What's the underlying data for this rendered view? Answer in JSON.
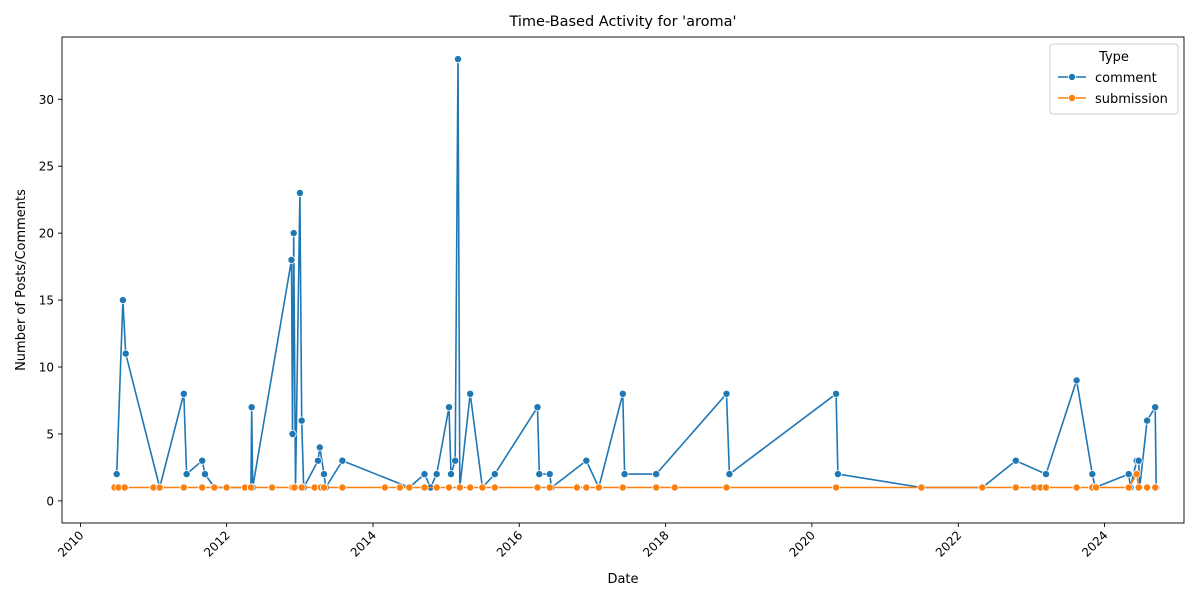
{
  "chart_data": {
    "type": "line",
    "title": "Time-Based Activity for 'aroma'",
    "xlabel": "Date",
    "ylabel": "Number of Posts/Comments",
    "xlim": [
      "2009-10-01",
      "2025-02-01"
    ],
    "ylim": [
      -1.65,
      34.65
    ],
    "x_ticks": [
      "2010-01-01",
      "2012-01-01",
      "2014-01-01",
      "2016-01-01",
      "2018-01-01",
      "2020-01-01",
      "2022-01-01",
      "2024-01-01"
    ],
    "x_tick_labels": [
      "2010",
      "2012",
      "2014",
      "2016",
      "2018",
      "2020",
      "2022",
      "2024"
    ],
    "y_ticks": [
      0,
      5,
      10,
      15,
      20,
      25,
      30
    ],
    "grid": false,
    "legend": {
      "title": "Type",
      "position": "top-right"
    },
    "series": [
      {
        "name": "comment",
        "color": "#1f77b4",
        "points": [
          [
            "2010-07-01",
            2
          ],
          [
            "2010-08-01",
            15
          ],
          [
            "2010-08-15",
            11
          ],
          [
            "2011-02-01",
            1
          ],
          [
            "2011-06-01",
            8
          ],
          [
            "2011-06-15",
            2
          ],
          [
            "2011-09-01",
            3
          ],
          [
            "2011-09-15",
            2
          ],
          [
            "2011-11-01",
            1
          ],
          [
            "2012-05-01",
            1
          ],
          [
            "2012-05-05",
            7
          ],
          [
            "2012-05-10",
            1
          ],
          [
            "2012-11-20",
            18
          ],
          [
            "2012-11-25",
            5
          ],
          [
            "2012-12-01",
            20
          ],
          [
            "2012-12-10",
            1
          ],
          [
            "2013-01-01",
            23
          ],
          [
            "2013-01-10",
            6
          ],
          [
            "2013-01-20",
            1
          ],
          [
            "2013-04-01",
            3
          ],
          [
            "2013-04-10",
            4
          ],
          [
            "2013-05-01",
            2
          ],
          [
            "2013-05-10",
            1
          ],
          [
            "2013-08-01",
            3
          ],
          [
            "2014-07-01",
            1
          ],
          [
            "2014-09-15",
            2
          ],
          [
            "2014-10-15",
            1
          ],
          [
            "2014-11-15",
            2
          ],
          [
            "2015-01-15",
            7
          ],
          [
            "2015-01-25",
            2
          ],
          [
            "2015-02-15",
            3
          ],
          [
            "2015-03-01",
            33
          ],
          [
            "2015-03-10",
            1
          ],
          [
            "2015-05-01",
            8
          ],
          [
            "2015-07-01",
            1
          ],
          [
            "2015-09-01",
            2
          ],
          [
            "2016-04-01",
            7
          ],
          [
            "2016-04-10",
            2
          ],
          [
            "2016-06-01",
            2
          ],
          [
            "2016-06-10",
            1
          ],
          [
            "2016-12-01",
            3
          ],
          [
            "2017-02-01",
            1
          ],
          [
            "2017-06-01",
            8
          ],
          [
            "2017-06-10",
            2
          ],
          [
            "2017-11-15",
            2
          ],
          [
            "2018-11-01",
            8
          ],
          [
            "2018-11-15",
            2
          ],
          [
            "2020-05-01",
            8
          ],
          [
            "2020-05-10",
            2
          ],
          [
            "2021-07-01",
            1
          ],
          [
            "2022-05-01",
            1
          ],
          [
            "2022-10-15",
            3
          ],
          [
            "2023-03-15",
            2
          ],
          [
            "2023-08-15",
            9
          ],
          [
            "2023-11-01",
            2
          ],
          [
            "2023-11-15",
            1
          ],
          [
            "2024-05-01",
            2
          ],
          [
            "2024-05-10",
            1
          ],
          [
            "2024-06-10",
            3
          ],
          [
            "2024-06-20",
            3
          ],
          [
            "2024-06-25",
            1
          ],
          [
            "2024-08-01",
            6
          ],
          [
            "2024-09-10",
            7
          ],
          [
            "2024-09-15",
            1
          ]
        ]
      },
      {
        "name": "submission",
        "color": "#ff7f0e",
        "points": [
          [
            "2010-06-20",
            1
          ],
          [
            "2010-07-10",
            1
          ],
          [
            "2010-08-10",
            1
          ],
          [
            "2011-01-01",
            1
          ],
          [
            "2011-02-01",
            1
          ],
          [
            "2011-06-01",
            1
          ],
          [
            "2011-09-01",
            1
          ],
          [
            "2011-11-01",
            1
          ],
          [
            "2012-01-01",
            1
          ],
          [
            "2012-04-01",
            1
          ],
          [
            "2012-05-01",
            1
          ],
          [
            "2012-08-15",
            1
          ],
          [
            "2012-11-25",
            1
          ],
          [
            "2012-12-05",
            1
          ],
          [
            "2013-01-10",
            1
          ],
          [
            "2013-03-15",
            1
          ],
          [
            "2013-04-15",
            1
          ],
          [
            "2013-05-01",
            1
          ],
          [
            "2013-08-01",
            1
          ],
          [
            "2014-03-01",
            1
          ],
          [
            "2014-05-15",
            1
          ],
          [
            "2014-07-01",
            1
          ],
          [
            "2014-09-15",
            1
          ],
          [
            "2014-11-15",
            1
          ],
          [
            "2015-01-15",
            1
          ],
          [
            "2015-03-10",
            1
          ],
          [
            "2015-05-01",
            1
          ],
          [
            "2015-07-01",
            1
          ],
          [
            "2015-09-01",
            1
          ],
          [
            "2016-04-01",
            1
          ],
          [
            "2016-06-01",
            1
          ],
          [
            "2016-10-15",
            1
          ],
          [
            "2016-12-01",
            1
          ],
          [
            "2017-02-01",
            1
          ],
          [
            "2017-06-01",
            1
          ],
          [
            "2017-11-15",
            1
          ],
          [
            "2018-02-15",
            1
          ],
          [
            "2018-11-01",
            1
          ],
          [
            "2020-05-01",
            1
          ],
          [
            "2021-07-01",
            1
          ],
          [
            "2022-05-01",
            1
          ],
          [
            "2022-10-15",
            1
          ],
          [
            "2023-01-15",
            1
          ],
          [
            "2023-02-15",
            1
          ],
          [
            "2023-03-15",
            1
          ],
          [
            "2023-08-15",
            1
          ],
          [
            "2023-11-01",
            1
          ],
          [
            "2023-11-20",
            1
          ],
          [
            "2024-05-01",
            1
          ],
          [
            "2024-06-10",
            2
          ],
          [
            "2024-06-20",
            1
          ],
          [
            "2024-08-01",
            1
          ],
          [
            "2024-09-10",
            1
          ]
        ]
      }
    ]
  }
}
